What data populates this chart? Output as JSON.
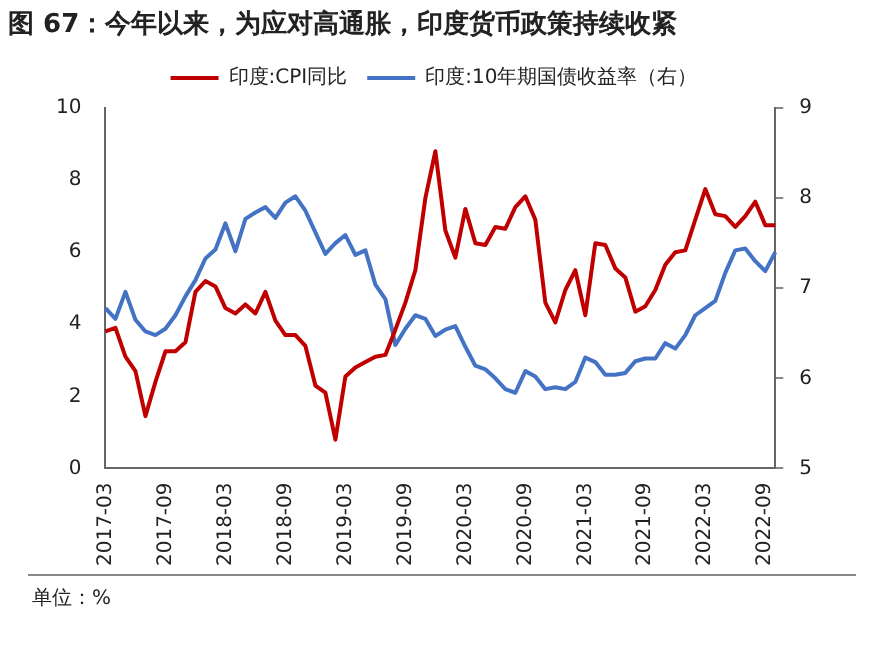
{
  "chart_data": {
    "type": "line",
    "title": "图 67：今年以来，为应对高通胀，印度货币政策持续收紧",
    "categories": [
      "2017-03",
      null,
      null,
      null,
      null,
      null,
      "2017-09",
      null,
      null,
      null,
      null,
      null,
      "2018-03",
      null,
      null,
      null,
      null,
      null,
      "2018-09",
      null,
      null,
      null,
      null,
      null,
      "2019-03",
      null,
      null,
      null,
      null,
      null,
      "2019-09",
      null,
      null,
      null,
      null,
      null,
      "2020-03",
      null,
      null,
      null,
      null,
      null,
      "2020-09",
      null,
      null,
      null,
      null,
      null,
      "2021-03",
      null,
      null,
      null,
      null,
      null,
      "2021-09",
      null,
      null,
      null,
      null,
      null,
      "2022-03",
      null,
      null,
      null,
      null,
      null,
      "2022-09",
      null
    ],
    "series": [
      {
        "name": "印度:CPI同比",
        "color": "#c00000",
        "values": [
          3.8,
          3.9,
          3.1,
          2.7,
          1.45,
          2.4,
          3.25,
          3.25,
          3.5,
          4.9,
          5.2,
          5.05,
          4.45,
          4.3,
          4.55,
          4.3,
          4.9,
          4.1,
          3.7,
          3.7,
          3.4,
          2.3,
          2.1,
          0.8,
          2.55,
          2.8,
          2.95,
          3.1,
          3.15,
          3.85,
          4.6,
          5.5,
          7.5,
          8.8,
          6.6,
          5.85,
          7.2,
          6.25,
          6.2,
          6.7,
          6.65,
          7.25,
          7.55,
          6.9,
          4.6,
          4.05,
          4.95,
          5.5,
          4.25,
          6.25,
          6.2,
          5.55,
          5.3,
          4.35,
          4.5,
          4.95,
          5.65,
          6.0,
          6.05,
          6.9,
          7.75,
          7.05,
          7.0,
          6.7,
          7.0,
          7.4,
          6.75,
          6.75
        ]
      },
      {
        "name": "印度:10年期国债收益率（右）",
        "color": "#4472c4",
        "axis": "y2",
        "values": [
          6.78,
          6.66,
          6.96,
          6.65,
          6.52,
          6.48,
          6.55,
          6.7,
          6.91,
          7.09,
          7.33,
          7.43,
          7.72,
          7.41,
          7.77,
          7.84,
          7.9,
          7.78,
          7.95,
          8.02,
          7.86,
          7.62,
          7.38,
          7.5,
          7.59,
          7.37,
          7.42,
          7.04,
          6.88,
          6.37,
          6.55,
          6.7,
          6.66,
          6.47,
          6.54,
          6.58,
          6.35,
          6.14,
          6.1,
          6.0,
          5.88,
          5.84,
          6.08,
          6.02,
          5.88,
          5.9,
          5.88,
          5.96,
          6.23,
          6.18,
          6.04,
          6.04,
          6.06,
          6.19,
          6.22,
          6.22,
          6.39,
          6.33,
          6.48,
          6.7,
          6.78,
          6.86,
          7.17,
          7.42,
          7.44,
          7.3,
          7.19,
          7.4
        ]
      }
    ],
    "ylim": [
      0,
      10
    ],
    "yticks": [
      0,
      2,
      4,
      6,
      8,
      10
    ],
    "y2lim": [
      5,
      9
    ],
    "y2ticks": [
      5,
      6,
      7,
      8,
      9
    ],
    "legend": "top",
    "grid": false,
    "annotations": [
      "单位：%"
    ]
  }
}
